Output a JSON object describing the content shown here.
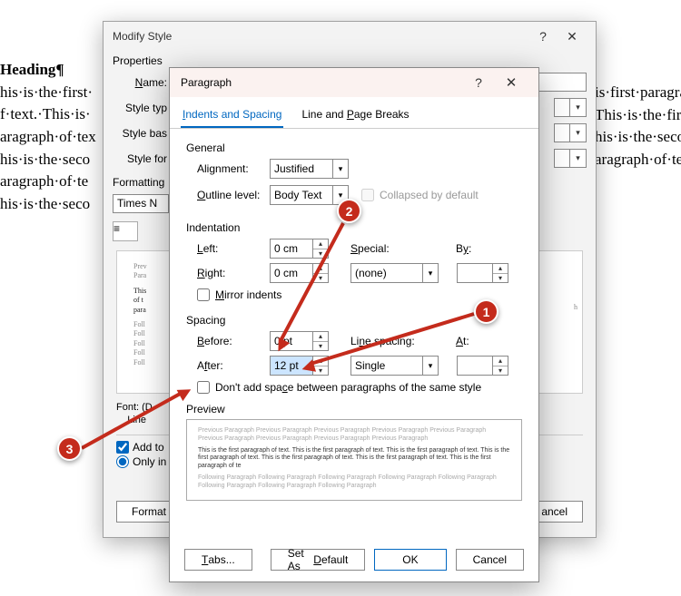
{
  "doc": {
    "heading": "Heading¶",
    "l1": "his·is·the·first·",
    "l2": "f·text.·This·is·",
    "l3": "aragraph·of·tex",
    "l4": "his·is·the·seco",
    "l5": "aragraph·of·te",
    "l6": "his·is·the·seco",
    "r1": "is·first·paragra",
    "r2": "This·is·the·fir",
    "r3": "his·is·the·secor",
    "r4": "",
    "r5": "aragraph·of·tex"
  },
  "modify": {
    "title": "Modify Style",
    "properties": "Properties",
    "name": "Name:",
    "style_type": "Style typ",
    "style_based": "Style bas",
    "style_for": "Style for",
    "formatting": "Formatting",
    "font": "Times N",
    "font_desc": "Font: (D",
    "line_desc": "Line ",
    "add_to": "Add to",
    "only_in": "Only in",
    "format_btn": "Format",
    "cancel_btn": "ancel",
    "prev1": "Prev",
    "prev2": "Para",
    "curr1": "This",
    "curr2": "of t",
    "curr3": "para",
    "foll": "Foll",
    "h_suffix": "h"
  },
  "para": {
    "title": "Paragraph",
    "tab1": "Indents and Spacing",
    "tab2": "Line and Page Breaks",
    "general": "General",
    "alignment": "Alignment:",
    "alignment_val": "Justified",
    "outline": "Outline level:",
    "outline_val": "Body Text",
    "collapsed": "Collapsed by default",
    "indentation": "Indentation",
    "left": "Left:",
    "right": "Right:",
    "zero_cm": "0 cm",
    "special": "Special:",
    "special_val": "(none)",
    "by": "By:",
    "mirror": "Mirror indents",
    "spacing": "Spacing",
    "before": "Before:",
    "before_val": "0 pt",
    "after": "After:",
    "after_val": "12 pt",
    "line_spacing": "Line spacing:",
    "line_spacing_val": "Single",
    "at": "At:",
    "dont_add": "Don't add space between paragraphs of the same style",
    "preview": "Preview",
    "tabs_btn": "Tabs...",
    "set_default": "Set As Default",
    "ok": "OK",
    "cancel": "Cancel",
    "prev_gray": "Previous Paragraph Previous Paragraph Previous Paragraph Previous Paragraph Previous Paragraph Previous Paragraph Previous Paragraph Previous Paragraph Previous Paragraph",
    "prev_cur": "This is the first paragraph of text. This is the first paragraph of text. This is the first paragraph of text. This is the first paragraph of text. This is the first paragraph of text. This is the first paragraph of text. This is the first paragraph of te",
    "prev_foll": "Following Paragraph Following Paragraph Following Paragraph Following Paragraph Following Paragraph Following Paragraph Following Paragraph Following Paragraph"
  },
  "markers": {
    "m1": "1",
    "m2": "2",
    "m3": "3"
  },
  "colors": {
    "accent": "#0067c0",
    "marker": "#c42b1c"
  }
}
